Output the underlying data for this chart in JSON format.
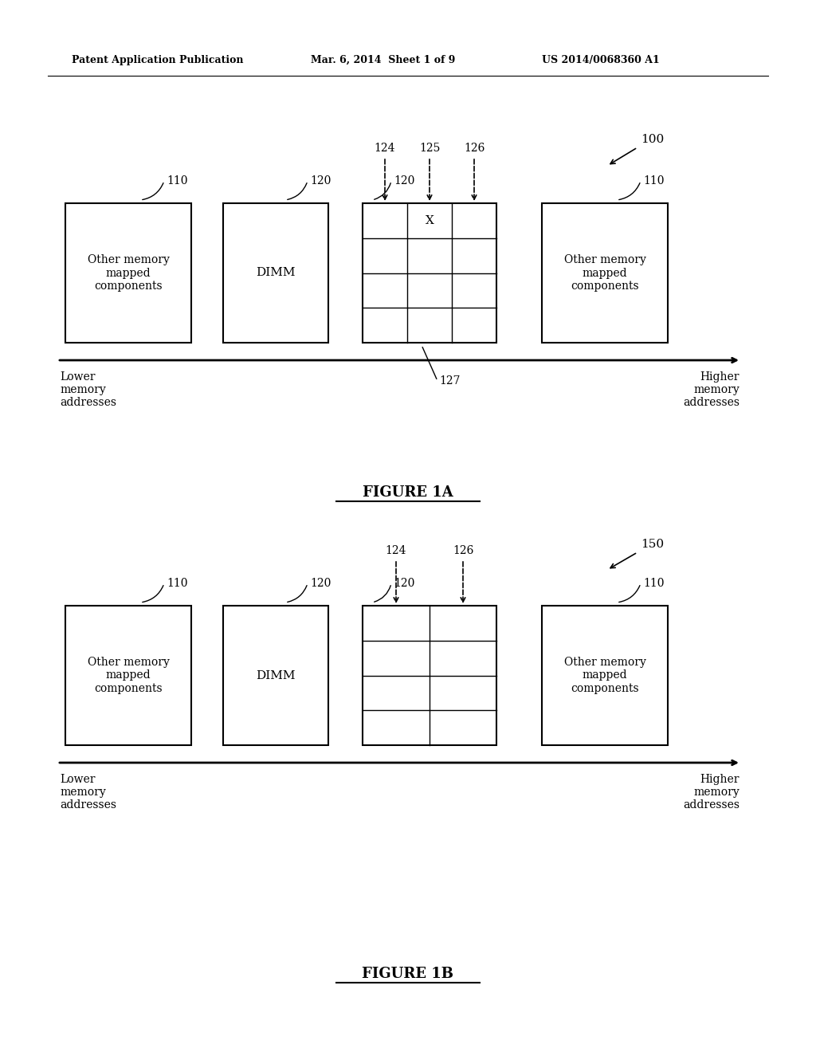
{
  "bg_color": "#ffffff",
  "header_left": "Patent Application Publication",
  "header_mid": "Mar. 6, 2014  Sheet 1 of 9",
  "header_right": "US 2014/0068360 A1",
  "fig1a_label": "FIGURE 1A",
  "fig1b_label": "FIGURE 1B",
  "fig1a_ref": "100",
  "fig1b_ref": "150",
  "box_labels_outer": "Other memory\nmapped\ncomponents",
  "box_label_dimm": "DIMM",
  "label_110": "110",
  "label_120": "120",
  "label_124": "124",
  "label_125": "125",
  "label_126": "126",
  "label_127": "127",
  "lower_mem": "Lower\nmemory\naddresses",
  "higher_mem": "Higher\nmemory\naddresses",
  "x_mark": "X"
}
